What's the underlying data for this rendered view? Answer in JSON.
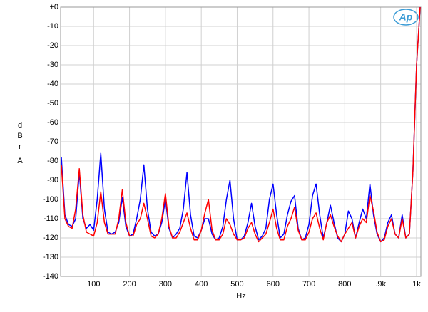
{
  "chart_data": {
    "type": "line",
    "logo": "Ap",
    "xlabel": "Hz",
    "ylabel": [
      "dBr",
      "A"
    ],
    "xlim": [
      8,
      1012
    ],
    "ylim": [
      -140,
      0
    ],
    "xticks": [
      100,
      200,
      300,
      400,
      500,
      600,
      700,
      800,
      {
        "value": 900,
        "label": ".9k"
      },
      {
        "value": 1000,
        "label": "1k"
      }
    ],
    "yticks": [
      {
        "value": 0,
        "label": "+0"
      },
      -10,
      -20,
      -30,
      -40,
      -50,
      -60,
      -70,
      -80,
      -90,
      -100,
      -110,
      -120,
      -130,
      -140
    ],
    "grid": true,
    "x": [
      10,
      20,
      30,
      40,
      50,
      60,
      70,
      80,
      90,
      100,
      110,
      120,
      130,
      140,
      150,
      160,
      170,
      180,
      190,
      200,
      210,
      220,
      230,
      240,
      250,
      260,
      270,
      280,
      290,
      300,
      310,
      320,
      330,
      340,
      350,
      360,
      370,
      380,
      390,
      400,
      410,
      420,
      430,
      440,
      450,
      460,
      470,
      480,
      490,
      500,
      510,
      520,
      530,
      540,
      550,
      560,
      570,
      580,
      590,
      600,
      610,
      620,
      630,
      640,
      650,
      660,
      670,
      680,
      690,
      700,
      710,
      720,
      730,
      740,
      750,
      760,
      770,
      780,
      790,
      800,
      810,
      820,
      830,
      840,
      850,
      860,
      870,
      880,
      890,
      900,
      910,
      920,
      930,
      940,
      950,
      960,
      970,
      980,
      990,
      1000,
      1010
    ],
    "series": [
      {
        "color": "#0000ff",
        "values": [
          -78,
          -108,
          -113,
          -114,
          -110,
          -86,
          -110,
          -115,
          -113,
          -116,
          -100,
          -76,
          -105,
          -117,
          -118,
          -117,
          -112,
          -99,
          -114,
          -119,
          -118,
          -110,
          -100,
          -82,
          -105,
          -117,
          -119,
          -118,
          -112,
          -100,
          -115,
          -120,
          -118,
          -115,
          -105,
          -86,
          -108,
          -119,
          -120,
          -116,
          -110,
          -110,
          -118,
          -121,
          -120,
          -114,
          -100,
          -90,
          -110,
          -121,
          -121,
          -119,
          -112,
          -102,
          -114,
          -121,
          -119,
          -115,
          -100,
          -92,
          -108,
          -120,
          -118,
          -108,
          -101,
          -98,
          -115,
          -121,
          -120,
          -113,
          -98,
          -92,
          -108,
          -120,
          -112,
          -103,
          -112,
          -120,
          -122,
          -118,
          -106,
          -110,
          -120,
          -112,
          -105,
          -110,
          -92,
          -108,
          -118,
          -122,
          -120,
          -112,
          -108,
          -118,
          -120,
          -108,
          -120,
          -118,
          -85,
          -30,
          0
        ]
      },
      {
        "color": "#ff0000",
        "values": [
          -82,
          -110,
          -114,
          -115,
          -105,
          -84,
          -108,
          -117,
          -118,
          -119,
          -112,
          -96,
          -112,
          -118,
          -118,
          -118,
          -110,
          -95,
          -112,
          -119,
          -119,
          -113,
          -110,
          -102,
          -110,
          -119,
          -120,
          -118,
          -110,
          -97,
          -114,
          -120,
          -120,
          -117,
          -112,
          -107,
          -115,
          -121,
          -121,
          -116,
          -107,
          -100,
          -116,
          -121,
          -121,
          -118,
          -110,
          -113,
          -118,
          -121,
          -121,
          -120,
          -115,
          -112,
          -118,
          -122,
          -120,
          -118,
          -112,
          -105,
          -115,
          -121,
          -121,
          -114,
          -110,
          -104,
          -116,
          -121,
          -121,
          -117,
          -110,
          -107,
          -115,
          -121,
          -112,
          -108,
          -114,
          -119,
          -122,
          -118,
          -115,
          -112,
          -120,
          -114,
          -110,
          -112,
          -98,
          -106,
          -117,
          -122,
          -121,
          -114,
          -110,
          -118,
          -120,
          -110,
          -120,
          -118,
          -85,
          -30,
          0
        ]
      }
    ]
  }
}
